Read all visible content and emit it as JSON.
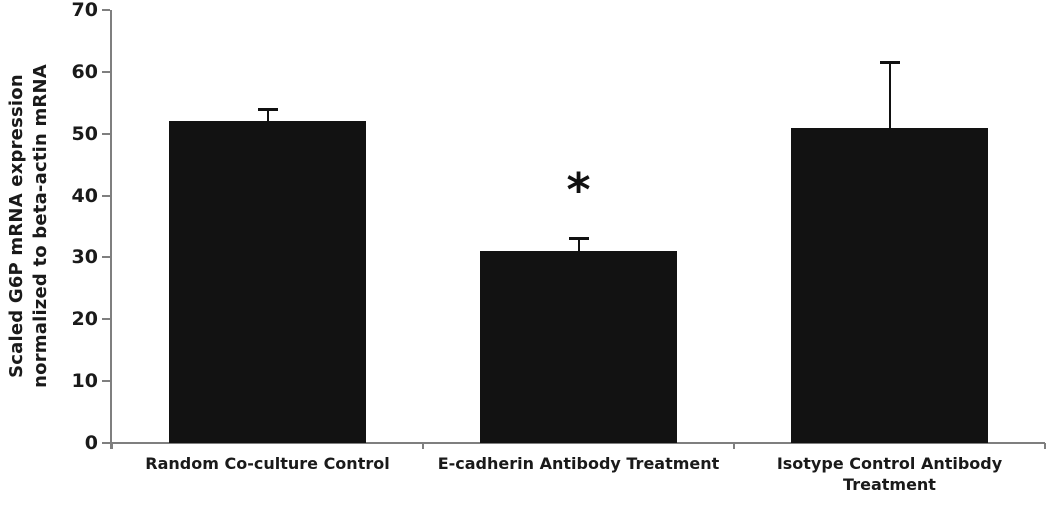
{
  "chart_data": {
    "type": "bar",
    "ylabel": "Scaled G6P mRNA expression normalized to beta-actin mRNA",
    "ylabel_lines": [
      "Scaled G6P mRNA expression",
      "normalized to beta-actin mRNA"
    ],
    "categories": [
      "Random Co-culture Control",
      "E-cadherin Antibody Treatment",
      "Isotype Control Antibody Treatment"
    ],
    "values": [
      52,
      31,
      51
    ],
    "errors_plus": [
      1.8,
      2,
      10.5
    ],
    "yticks": [
      0,
      10,
      20,
      30,
      40,
      50,
      60,
      70
    ],
    "ylim": [
      0,
      70
    ],
    "significance": [
      {
        "category_index": 1,
        "symbol": "*"
      }
    ],
    "legend": "none",
    "grid": "off",
    "colors": {
      "bar": "#121212",
      "error_bar": "#111111",
      "axis": "#7f7f7f",
      "text": "#1a1a1a",
      "background": "#ffffff"
    }
  }
}
